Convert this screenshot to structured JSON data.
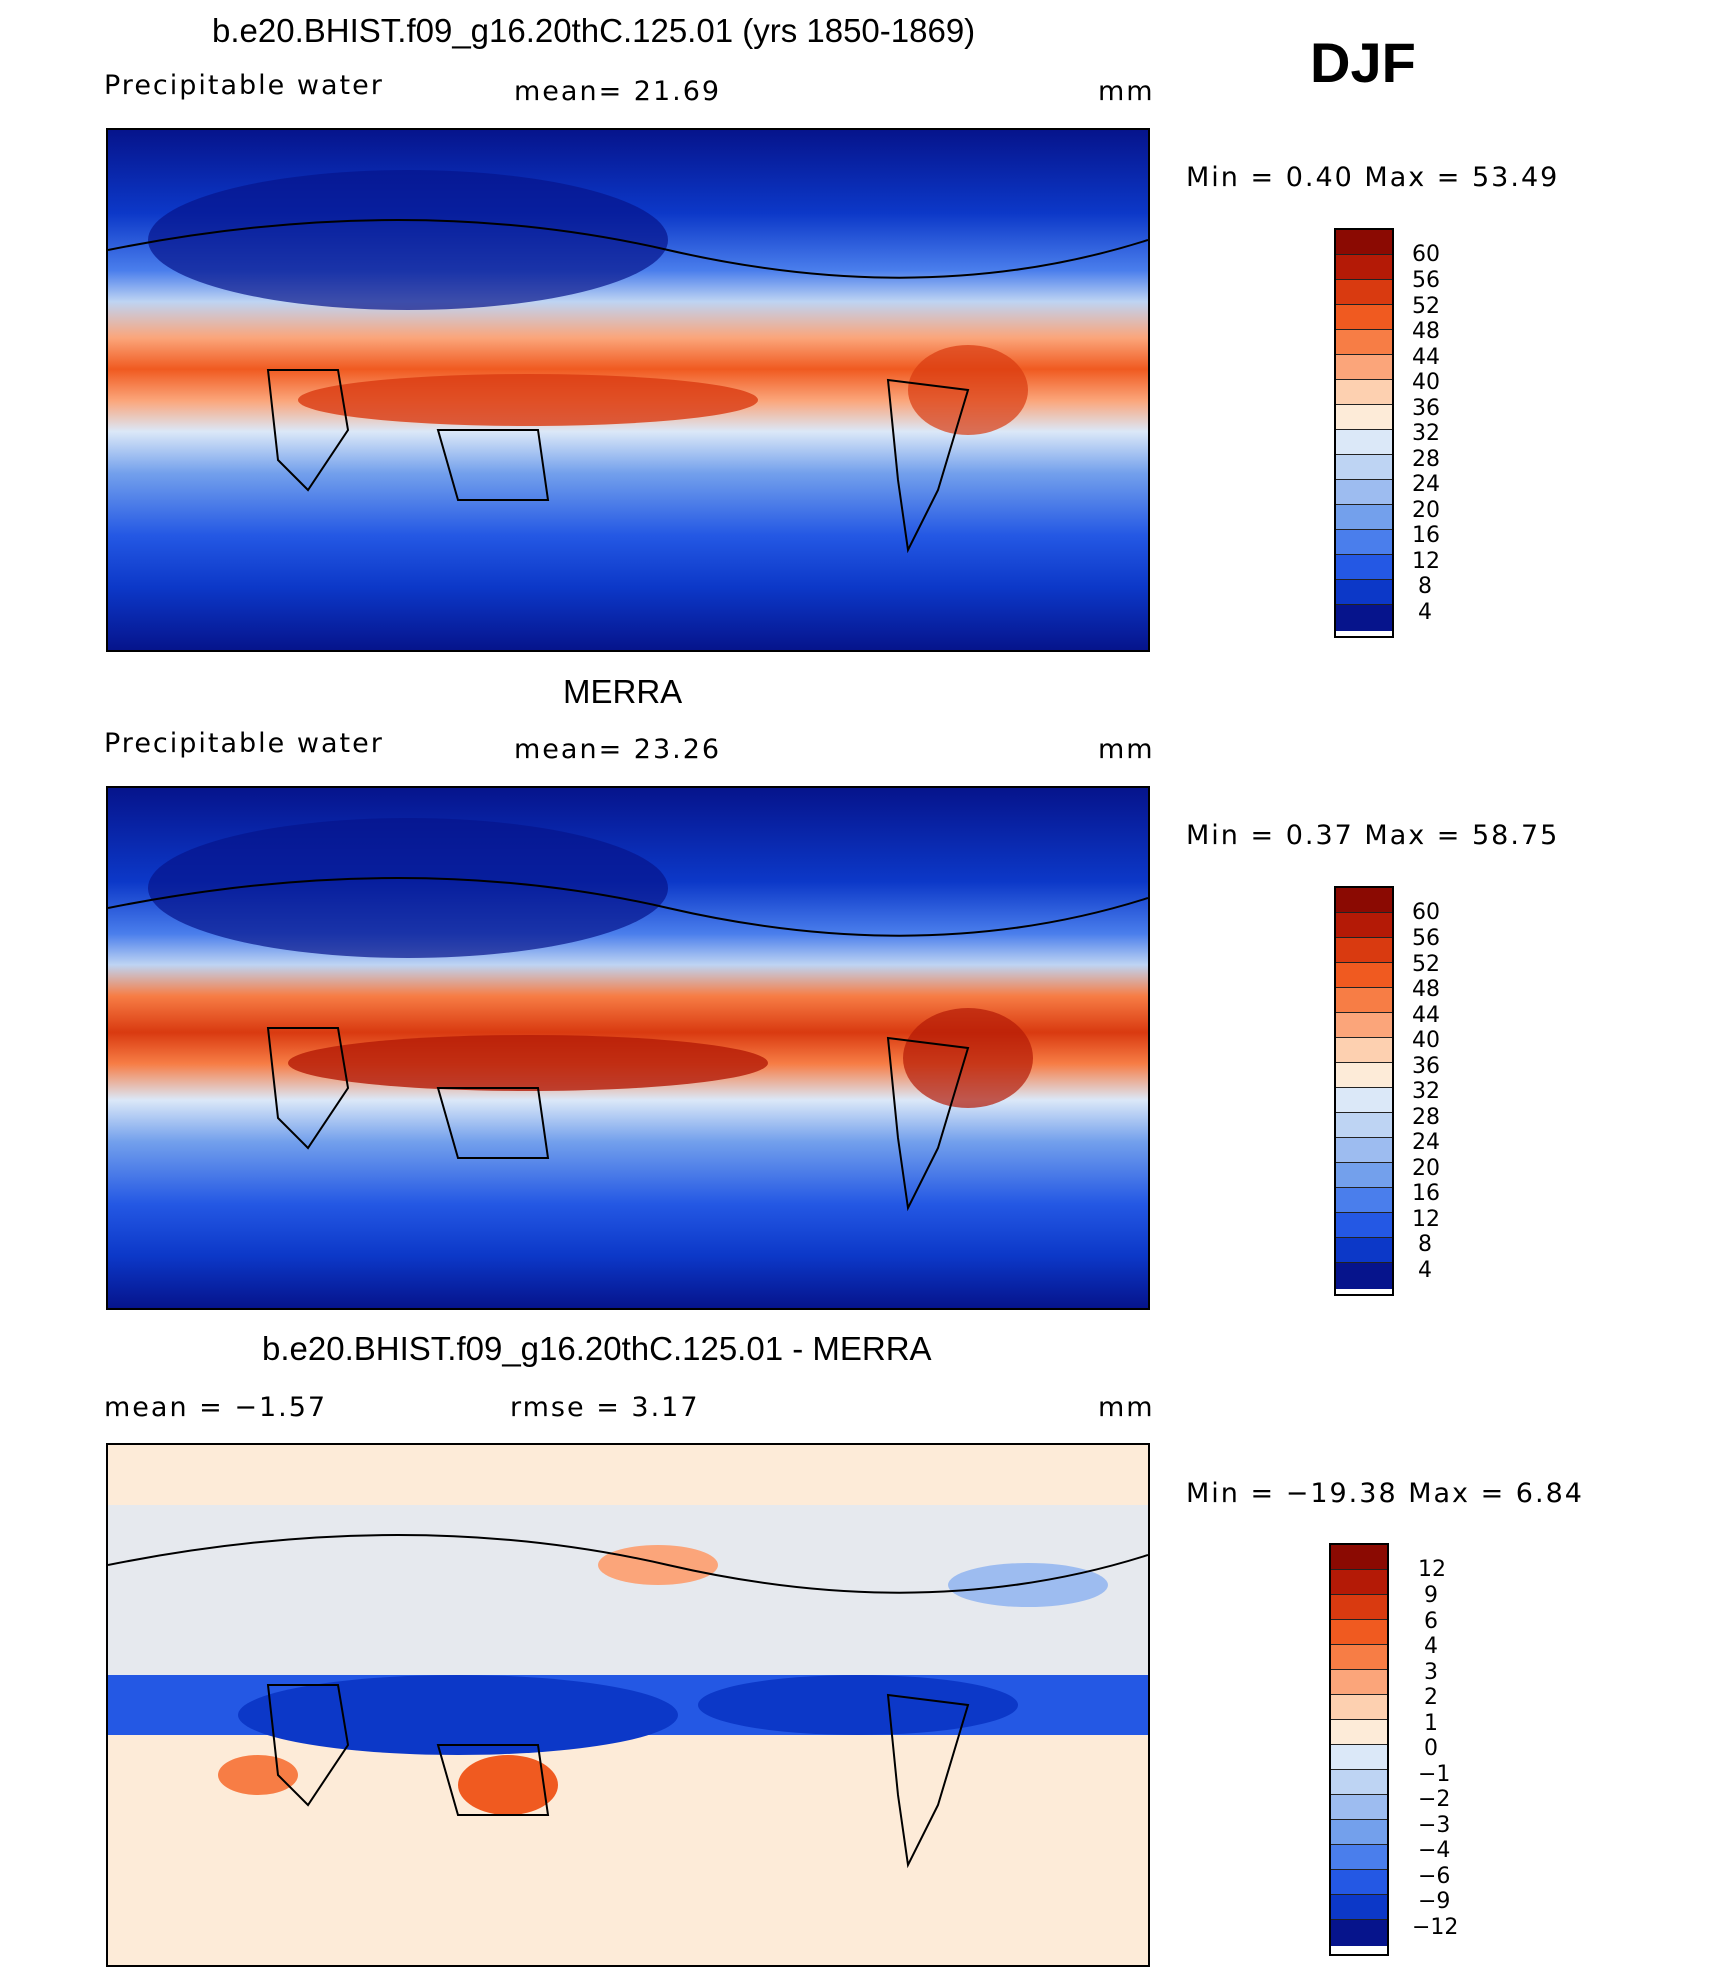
{
  "season": "DJF",
  "panels": [
    {
      "title": "b.e20.BHIST.f09_g16.20thC.125.01 (yrs 1850-1869)",
      "left": "Precipitable  water",
      "mid": "mean=   21.69",
      "unit": "mm",
      "minmax": "Min  =     0.40  Max  =    53.49",
      "colorbar_labels": [
        "60",
        "56",
        "52",
        "48",
        "44",
        "40",
        "36",
        "32",
        "28",
        "24",
        "20",
        "16",
        "12",
        "8",
        "4"
      ]
    },
    {
      "title": "MERRA",
      "left": "Precipitable  water",
      "mid": "mean=   23.26",
      "unit": "mm",
      "minmax": "Min  =     0.37  Max  =    58.75",
      "colorbar_labels": [
        "60",
        "56",
        "52",
        "48",
        "44",
        "40",
        "36",
        "32",
        "28",
        "24",
        "20",
        "16",
        "12",
        "8",
        "4"
      ]
    },
    {
      "title": "b.e20.BHIST.f09_g16.20thC.125.01 - MERRA",
      "left": "mean  =    −1.57",
      "mid": "rmse  =     3.17",
      "unit": "mm",
      "minmax": "Min  = −19.38  Max  =      6.84",
      "colorbar_labels": [
        "12",
        "9",
        "6",
        "4",
        "3",
        "2",
        "1",
        "0",
        "−1",
        "−2",
        "−3",
        "−4",
        "−6",
        "−9",
        "−12"
      ]
    }
  ],
  "colors": {
    "abs_scale": [
      "#8b0a02",
      "#b41a06",
      "#d93a10",
      "#f05a20",
      "#f77d45",
      "#fba57a",
      "#fdd0b0",
      "#fdebd8",
      "#dbe8f8",
      "#bed4f3",
      "#9dbcf0",
      "#73a0ec",
      "#4a7eec",
      "#2458e4",
      "#0c38c8",
      "#06148c"
    ],
    "diff_scale": [
      "#8b0a02",
      "#b41a06",
      "#d93a10",
      "#f05a20",
      "#f77d45",
      "#fba57a",
      "#fdd0b0",
      "#fdebd8",
      "#dbe8f8",
      "#bed4f3",
      "#9dbcf0",
      "#73a0ec",
      "#4a7eec",
      "#2458e4",
      "#0c38c8",
      "#06148c"
    ]
  }
}
